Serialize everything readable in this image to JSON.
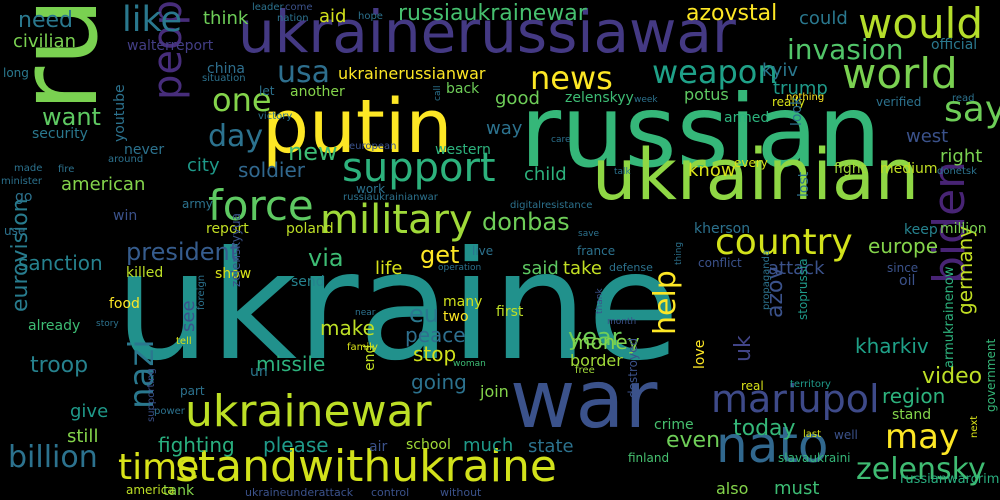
{
  "words": [
    {
      "text": "ukraine",
      "color": "#21918c"
    },
    {
      "text": "russia",
      "color": "#7ad151"
    },
    {
      "text": "russian",
      "color": "#35b779"
    },
    {
      "text": "war",
      "color": "#3b528b"
    },
    {
      "text": "ukrainian",
      "color": "#8fd744"
    },
    {
      "text": "putin",
      "color": "#fde725"
    },
    {
      "text": "ukrainerussiawar",
      "color": "#443983"
    },
    {
      "text": "ukrainewar",
      "color": "#bddf26"
    },
    {
      "text": "standwithukraine",
      "color": "#d2e21b"
    },
    {
      "text": "nato",
      "color": "#31688e"
    },
    {
      "text": "military",
      "color": "#a0da39"
    },
    {
      "text": "force",
      "color": "#5ec962"
    },
    {
      "text": "support",
      "color": "#2db27d"
    },
    {
      "text": "country",
      "color": "#d2e21b"
    },
    {
      "text": "world",
      "color": "#7ad151"
    },
    {
      "text": "would",
      "color": "#b5de2b"
    },
    {
      "text": "time",
      "color": "#d8e219"
    },
    {
      "text": "people",
      "color": "#472d7b"
    },
    {
      "text": "mariupol",
      "color": "#3e4a89"
    },
    {
      "text": "weapon",
      "color": "#1fa188"
    },
    {
      "text": "news",
      "color": "#fde725"
    },
    {
      "text": "one",
      "color": "#84d44b"
    },
    {
      "text": "say",
      "color": "#6ece58"
    },
    {
      "text": "like",
      "color": "#2a788e"
    },
    {
      "text": "may",
      "color": "#fde725"
    },
    {
      "text": "biden",
      "color": "#482475"
    },
    {
      "text": "day",
      "color": "#2c728e"
    },
    {
      "text": "zelensky",
      "color": "#3fbc73"
    },
    {
      "text": "help",
      "color": "#fde725"
    },
    {
      "text": "usa",
      "color": "#2e6f8e"
    },
    {
      "text": "nazi",
      "color": "#2a788e"
    },
    {
      "text": "invasion",
      "color": "#52c569"
    },
    {
      "text": "president",
      "color": "#365c8d"
    },
    {
      "text": "new",
      "color": "#3dbc74"
    },
    {
      "text": "donbas",
      "color": "#6ece58"
    },
    {
      "text": "get",
      "color": "#fde725"
    },
    {
      "text": "via",
      "color": "#3dbc74"
    },
    {
      "text": "want",
      "color": "#5ec962"
    },
    {
      "text": "need",
      "color": "#2a788e"
    },
    {
      "text": "azovstal",
      "color": "#fde725"
    },
    {
      "text": "russiaukrainewar",
      "color": "#46c06f"
    },
    {
      "text": "europe",
      "color": "#84d44b"
    },
    {
      "text": "eurovision",
      "color": "#287c8e"
    },
    {
      "text": "billion",
      "color": "#2c728e"
    },
    {
      "text": "troop",
      "color": "#26828e"
    },
    {
      "text": "sanction",
      "color": "#26828e"
    },
    {
      "text": "peace",
      "color": "#2e6f8e"
    },
    {
      "text": "year",
      "color": "#6ece58"
    },
    {
      "text": "money",
      "color": "#84d44b"
    },
    {
      "text": "fighting",
      "color": "#29af7f"
    },
    {
      "text": "please",
      "color": "#1f9a8a"
    },
    {
      "text": "missile",
      "color": "#2db27d"
    },
    {
      "text": "soldier",
      "color": "#31688e"
    },
    {
      "text": "american",
      "color": "#84d44b"
    },
    {
      "text": "make",
      "color": "#bddf26"
    },
    {
      "text": "stop",
      "color": "#d2e21b"
    },
    {
      "text": "going",
      "color": "#2c728e"
    },
    {
      "text": "even",
      "color": "#6ece58"
    },
    {
      "text": "today",
      "color": "#35b779"
    },
    {
      "text": "video",
      "color": "#bddf26"
    },
    {
      "text": "germany",
      "color": "#c2df23"
    },
    {
      "text": "kharkiv",
      "color": "#1fa188"
    },
    {
      "text": "region",
      "color": "#2db27d"
    },
    {
      "text": "uk",
      "color": "#414487"
    },
    {
      "text": "azov",
      "color": "#3b528b"
    },
    {
      "text": "eu",
      "color": "#2a788e"
    },
    {
      "text": "life",
      "color": "#d8e219"
    },
    {
      "text": "said",
      "color": "#5ec962"
    },
    {
      "text": "take",
      "color": "#c2df23"
    },
    {
      "text": "attack",
      "color": "#3b528b"
    },
    {
      "text": "trump",
      "color": "#1f9a8a"
    },
    {
      "text": "kyiv",
      "color": "#2a788e"
    },
    {
      "text": "good",
      "color": "#6ece58"
    },
    {
      "text": "could",
      "color": "#2a788e"
    },
    {
      "text": "aid",
      "color": "#d2e21b"
    },
    {
      "text": "think",
      "color": "#6ece58"
    },
    {
      "text": "civilian",
      "color": "#7ad151"
    },
    {
      "text": "child",
      "color": "#2db27d"
    },
    {
      "text": "know",
      "color": "#d8e219"
    },
    {
      "text": "right",
      "color": "#7ad151"
    },
    {
      "text": "west",
      "color": "#3b528b"
    },
    {
      "text": "city",
      "color": "#1f9a8a"
    },
    {
      "text": "way",
      "color": "#2c728e"
    },
    {
      "text": "much",
      "color": "#1f9a8a"
    },
    {
      "text": "state",
      "color": "#2c728e"
    },
    {
      "text": "still",
      "color": "#84d44b"
    },
    {
      "text": "give",
      "color": "#1f9a8a"
    },
    {
      "text": "also",
      "color": "#84d44b"
    },
    {
      "text": "must",
      "color": "#3dbc74"
    },
    {
      "text": "stand",
      "color": "#84d44b"
    },
    {
      "text": "fight",
      "color": "#a0da39"
    },
    {
      "text": "medium",
      "color": "#c2df23"
    },
    {
      "text": "join",
      "color": "#84d44b"
    },
    {
      "text": "border",
      "color": "#a0da39"
    },
    {
      "text": "potus",
      "color": "#5ec962"
    },
    {
      "text": "zelenskyy",
      "color": "#3dbc74"
    },
    {
      "text": "armed",
      "color": "#2db27d"
    },
    {
      "text": "youtube",
      "color": "#2c728e"
    },
    {
      "text": "china",
      "color": "#2e6f8e"
    },
    {
      "text": "walterreport",
      "color": "#433e85"
    },
    {
      "text": "security",
      "color": "#2a788e"
    },
    {
      "text": "long",
      "color": "#2a788e"
    },
    {
      "text": "official",
      "color": "#2a788e"
    },
    {
      "text": "million",
      "color": "#7ad151"
    },
    {
      "text": "keep",
      "color": "#26828e"
    },
    {
      "text": "oil",
      "color": "#3b528b"
    },
    {
      "text": "since",
      "color": "#3b528b"
    },
    {
      "text": "kherson",
      "color": "#2c728e"
    },
    {
      "text": "report",
      "color": "#c2df23"
    },
    {
      "text": "poland",
      "color": "#bddf26"
    },
    {
      "text": "killed",
      "color": "#bddf26"
    },
    {
      "text": "show",
      "color": "#d8e219"
    },
    {
      "text": "send",
      "color": "#26828e"
    },
    {
      "text": "food",
      "color": "#fde725"
    },
    {
      "text": "already",
      "color": "#3dbc74"
    },
    {
      "text": "western",
      "color": "#2db27d"
    },
    {
      "text": "another",
      "color": "#84d44b"
    },
    {
      "text": "back",
      "color": "#6ece58"
    },
    {
      "text": "school",
      "color": "#a0da39"
    },
    {
      "text": "tank",
      "color": "#84d44b"
    },
    {
      "text": "america",
      "color": "#bddf26"
    },
    {
      "text": "ukraineunderattack",
      "color": "#3b528b"
    },
    {
      "text": "control",
      "color": "#3b528b"
    },
    {
      "text": "without",
      "color": "#3b528b"
    },
    {
      "text": "russianwarcrimes",
      "color": "#29af7f"
    },
    {
      "text": "armukrainenow",
      "color": "#2db27d"
    },
    {
      "text": "government",
      "color": "#35b779"
    },
    {
      "text": "stoprussia",
      "color": "#1f9a8a"
    },
    {
      "text": "slavaukraini",
      "color": "#35b779"
    },
    {
      "text": "crime",
      "color": "#46c06f"
    },
    {
      "text": "finland",
      "color": "#46c06f"
    },
    {
      "text": "air",
      "color": "#3b528b"
    },
    {
      "text": "well",
      "color": "#3b528b"
    },
    {
      "text": "last",
      "color": "#d8e219"
    },
    {
      "text": "next",
      "color": "#d8e219"
    },
    {
      "text": "real",
      "color": "#d8e219"
    },
    {
      "text": "territory",
      "color": "#1f9a8a"
    },
    {
      "text": "propaganda",
      "color": "#2c728e"
    },
    {
      "text": "love",
      "color": "#fde725"
    },
    {
      "text": "two",
      "color": "#fde725"
    },
    {
      "text": "first",
      "color": "#bddf26"
    },
    {
      "text": "many",
      "color": "#d2e21b"
    },
    {
      "text": "end",
      "color": "#c2df23"
    },
    {
      "text": "un",
      "color": "#2a788e"
    },
    {
      "text": "part",
      "color": "#2c728e"
    },
    {
      "text": "power",
      "color": "#2c728e"
    },
    {
      "text": "supporting",
      "color": "#3b528b"
    },
    {
      "text": "tell",
      "color": "#d8e219"
    },
    {
      "text": "woman",
      "color": "#3dbc74"
    },
    {
      "text": "family",
      "color": "#d8e219"
    },
    {
      "text": "near",
      "color": "#2c728e"
    },
    {
      "text": "free",
      "color": "#a0da39"
    },
    {
      "text": "thank",
      "color": "#3b528b"
    },
    {
      "text": "month",
      "color": "#3b528b"
    },
    {
      "text": "come",
      "color": "#3b528b"
    },
    {
      "text": "nation",
      "color": "#2c728e"
    },
    {
      "text": "hope",
      "color": "#2c728e"
    },
    {
      "text": "leader",
      "color": "#2c728e"
    },
    {
      "text": "victory",
      "color": "#2c728e"
    },
    {
      "text": "european",
      "color": "#3b528b"
    },
    {
      "text": "let",
      "color": "#2c728e"
    },
    {
      "text": "never",
      "color": "#2c728e"
    },
    {
      "text": "around",
      "color": "#2c728e"
    },
    {
      "text": "made",
      "color": "#2c728e"
    },
    {
      "text": "minister",
      "color": "#2c728e"
    },
    {
      "text": "fire",
      "color": "#2c728e"
    },
    {
      "text": "army",
      "color": "#2c728e"
    },
    {
      "text": "win",
      "color": "#3b528b"
    },
    {
      "text": "go",
      "color": "#2c728e"
    },
    {
      "text": "use",
      "color": "#2c728e"
    },
    {
      "text": "work",
      "color": "#2c728e"
    },
    {
      "text": "russiaukrainianwar",
      "color": "#2c728e"
    },
    {
      "text": "digitalresistance",
      "color": "#2c728e"
    },
    {
      "text": "care",
      "color": "#2c728e"
    },
    {
      "text": "talk",
      "color": "#2c728e"
    },
    {
      "text": "situation",
      "color": "#2c728e"
    },
    {
      "text": "call",
      "color": "#2c728e"
    },
    {
      "text": "week",
      "color": "#2c728e"
    },
    {
      "text": "really",
      "color": "#d8e219"
    },
    {
      "text": "nothing",
      "color": "#fde725"
    },
    {
      "text": "verified",
      "color": "#2c728e"
    },
    {
      "text": "read",
      "color": "#2c728e"
    },
    {
      "text": "donetsk",
      "color": "#2c728e"
    },
    {
      "text": "look",
      "color": "#2c728e"
    },
    {
      "text": "lost",
      "color": "#2c728e"
    },
    {
      "text": "every",
      "color": "#d8e219"
    },
    {
      "text": "zelenskyyua",
      "color": "#3b528b"
    },
    {
      "text": "see",
      "color": "#3b528b"
    },
    {
      "text": "foreign",
      "color": "#2c728e"
    },
    {
      "text": "destroyed",
      "color": "#3b528b"
    },
    {
      "text": "defense",
      "color": "#2c728e"
    },
    {
      "text": "operation",
      "color": "#2c728e"
    },
    {
      "text": "live",
      "color": "#2c728e"
    },
    {
      "text": "france",
      "color": "#2c728e"
    },
    {
      "text": "save",
      "color": "#2c728e"
    },
    {
      "text": "thing",
      "color": "#2c728e"
    },
    {
      "text": "conflict",
      "color": "#3b528b"
    },
    {
      "text": "story",
      "color": "#2c728e"
    },
    {
      "text": "ukrainerussianwar",
      "color": "#fde725"
    }
  ]
}
